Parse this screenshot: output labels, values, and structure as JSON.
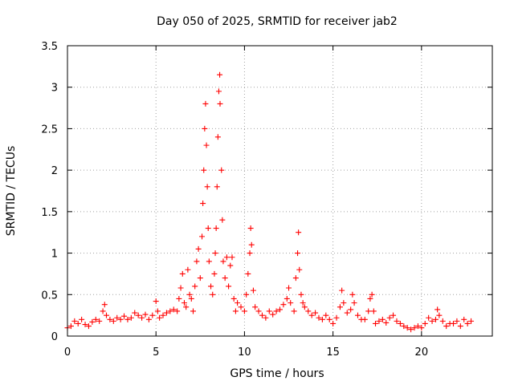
{
  "chart_data": {
    "type": "scatter",
    "title": "Day 050 of 2025, SRMTID for receiver jab2",
    "xlabel": "GPS time / hours",
    "ylabel": "SRMTID / TECUs",
    "xlim": [
      0,
      24
    ],
    "ylim": [
      0,
      3.5
    ],
    "xticks": [
      0,
      5,
      10,
      15,
      20
    ],
    "yticks": [
      0,
      0.5,
      1,
      1.5,
      2,
      2.5,
      3,
      3.5
    ],
    "xtick_labels": [
      "0",
      "5",
      "10",
      "15",
      "20"
    ],
    "ytick_labels": [
      "0",
      "0.5",
      "1",
      "1.5",
      "2",
      "2.5",
      "3",
      "3.5"
    ],
    "grid": true,
    "marker": "+",
    "series_color": "#ff0000",
    "series": [
      {
        "name": "jab2",
        "points": [
          [
            0.0,
            0.1
          ],
          [
            0.2,
            0.12
          ],
          [
            0.4,
            0.18
          ],
          [
            0.6,
            0.15
          ],
          [
            0.8,
            0.2
          ],
          [
            1.0,
            0.14
          ],
          [
            1.2,
            0.12
          ],
          [
            1.4,
            0.17
          ],
          [
            1.6,
            0.2
          ],
          [
            1.8,
            0.18
          ],
          [
            2.0,
            0.3
          ],
          [
            2.1,
            0.38
          ],
          [
            2.2,
            0.25
          ],
          [
            2.4,
            0.2
          ],
          [
            2.6,
            0.18
          ],
          [
            2.8,
            0.22
          ],
          [
            3.0,
            0.2
          ],
          [
            3.2,
            0.24
          ],
          [
            3.4,
            0.2
          ],
          [
            3.6,
            0.22
          ],
          [
            3.8,
            0.28
          ],
          [
            4.0,
            0.25
          ],
          [
            4.2,
            0.22
          ],
          [
            4.4,
            0.26
          ],
          [
            4.6,
            0.2
          ],
          [
            4.8,
            0.25
          ],
          [
            5.0,
            0.42
          ],
          [
            5.1,
            0.3
          ],
          [
            5.2,
            0.22
          ],
          [
            5.4,
            0.25
          ],
          [
            5.6,
            0.28
          ],
          [
            5.8,
            0.3
          ],
          [
            6.0,
            0.32
          ],
          [
            6.2,
            0.3
          ],
          [
            6.3,
            0.45
          ],
          [
            6.4,
            0.58
          ],
          [
            6.5,
            0.75
          ],
          [
            6.6,
            0.4
          ],
          [
            6.7,
            0.35
          ],
          [
            6.8,
            0.8
          ],
          [
            6.9,
            0.5
          ],
          [
            7.0,
            0.45
          ],
          [
            7.1,
            0.3
          ],
          [
            7.2,
            0.6
          ],
          [
            7.3,
            0.9
          ],
          [
            7.4,
            1.05
          ],
          [
            7.5,
            0.7
          ],
          [
            7.6,
            1.2
          ],
          [
            7.65,
            1.6
          ],
          [
            7.7,
            2.0
          ],
          [
            7.75,
            2.5
          ],
          [
            7.8,
            2.8
          ],
          [
            7.85,
            2.3
          ],
          [
            7.9,
            1.8
          ],
          [
            7.95,
            1.3
          ],
          [
            8.0,
            0.9
          ],
          [
            8.1,
            0.6
          ],
          [
            8.2,
            0.5
          ],
          [
            8.3,
            0.75
          ],
          [
            8.35,
            1.0
          ],
          [
            8.4,
            1.3
          ],
          [
            8.45,
            1.8
          ],
          [
            8.5,
            2.4
          ],
          [
            8.55,
            2.95
          ],
          [
            8.6,
            3.15
          ],
          [
            8.62,
            2.8
          ],
          [
            8.7,
            2.0
          ],
          [
            8.75,
            1.4
          ],
          [
            8.8,
            0.9
          ],
          [
            8.9,
            0.7
          ],
          [
            9.0,
            0.95
          ],
          [
            9.1,
            0.6
          ],
          [
            9.2,
            0.85
          ],
          [
            9.3,
            0.95
          ],
          [
            9.4,
            0.45
          ],
          [
            9.5,
            0.3
          ],
          [
            9.6,
            0.4
          ],
          [
            9.8,
            0.35
          ],
          [
            10.0,
            0.3
          ],
          [
            10.1,
            0.5
          ],
          [
            10.2,
            0.75
          ],
          [
            10.3,
            1.0
          ],
          [
            10.35,
            1.3
          ],
          [
            10.4,
            1.1
          ],
          [
            10.5,
            0.55
          ],
          [
            10.6,
            0.35
          ],
          [
            10.8,
            0.3
          ],
          [
            11.0,
            0.25
          ],
          [
            11.2,
            0.22
          ],
          [
            11.4,
            0.3
          ],
          [
            11.6,
            0.26
          ],
          [
            11.8,
            0.3
          ],
          [
            12.0,
            0.32
          ],
          [
            12.2,
            0.38
          ],
          [
            12.4,
            0.45
          ],
          [
            12.5,
            0.58
          ],
          [
            12.6,
            0.4
          ],
          [
            12.8,
            0.3
          ],
          [
            12.9,
            0.7
          ],
          [
            13.0,
            1.0
          ],
          [
            13.05,
            1.25
          ],
          [
            13.1,
            0.8
          ],
          [
            13.2,
            0.5
          ],
          [
            13.3,
            0.4
          ],
          [
            13.4,
            0.35
          ],
          [
            13.6,
            0.3
          ],
          [
            13.8,
            0.25
          ],
          [
            14.0,
            0.28
          ],
          [
            14.2,
            0.22
          ],
          [
            14.4,
            0.2
          ],
          [
            14.6,
            0.25
          ],
          [
            14.8,
            0.2
          ],
          [
            15.0,
            0.15
          ],
          [
            15.2,
            0.22
          ],
          [
            15.4,
            0.35
          ],
          [
            15.5,
            0.55
          ],
          [
            15.6,
            0.4
          ],
          [
            15.8,
            0.28
          ],
          [
            16.0,
            0.32
          ],
          [
            16.1,
            0.5
          ],
          [
            16.2,
            0.4
          ],
          [
            16.4,
            0.25
          ],
          [
            16.6,
            0.2
          ],
          [
            16.8,
            0.2
          ],
          [
            17.0,
            0.3
          ],
          [
            17.1,
            0.45
          ],
          [
            17.2,
            0.5
          ],
          [
            17.3,
            0.3
          ],
          [
            17.4,
            0.15
          ],
          [
            17.6,
            0.18
          ],
          [
            17.8,
            0.2
          ],
          [
            18.0,
            0.16
          ],
          [
            18.2,
            0.22
          ],
          [
            18.4,
            0.25
          ],
          [
            18.6,
            0.18
          ],
          [
            18.8,
            0.15
          ],
          [
            19.0,
            0.12
          ],
          [
            19.2,
            0.1
          ],
          [
            19.4,
            0.08
          ],
          [
            19.6,
            0.1
          ],
          [
            19.8,
            0.12
          ],
          [
            20.0,
            0.1
          ],
          [
            20.2,
            0.15
          ],
          [
            20.4,
            0.22
          ],
          [
            20.6,
            0.18
          ],
          [
            20.8,
            0.2
          ],
          [
            20.9,
            0.32
          ],
          [
            21.0,
            0.25
          ],
          [
            21.2,
            0.18
          ],
          [
            21.4,
            0.12
          ],
          [
            21.6,
            0.15
          ],
          [
            21.8,
            0.15
          ],
          [
            22.0,
            0.18
          ],
          [
            22.2,
            0.12
          ],
          [
            22.4,
            0.2
          ],
          [
            22.6,
            0.15
          ],
          [
            22.8,
            0.18
          ]
        ]
      }
    ]
  }
}
